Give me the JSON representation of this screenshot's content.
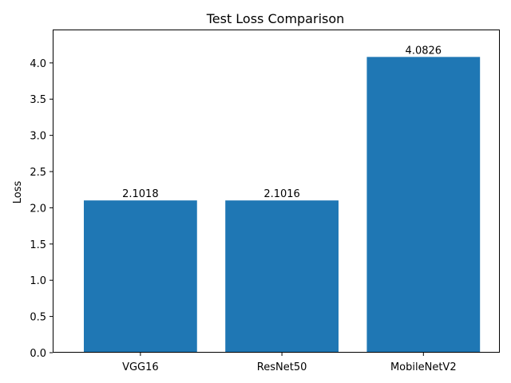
{
  "chart_data": {
    "type": "bar",
    "title": "Test Loss Comparison",
    "xlabel": "",
    "ylabel": "Loss",
    "categories": [
      "VGG16",
      "ResNet50",
      "MobileNetV2"
    ],
    "values": [
      2.1018,
      2.1016,
      4.0826
    ],
    "data_labels": [
      "2.1018",
      "2.1016",
      "4.0826"
    ],
    "ylim": [
      0,
      4.45
    ],
    "yticks": [
      0.0,
      0.5,
      1.0,
      1.5,
      2.0,
      2.5,
      3.0,
      3.5,
      4.0
    ],
    "ytick_labels": [
      "0.0",
      "0.5",
      "1.0",
      "1.5",
      "2.0",
      "2.5",
      "3.0",
      "3.5",
      "4.0"
    ],
    "bar_color": "#1f77b4",
    "grid": false,
    "legend": "none"
  }
}
